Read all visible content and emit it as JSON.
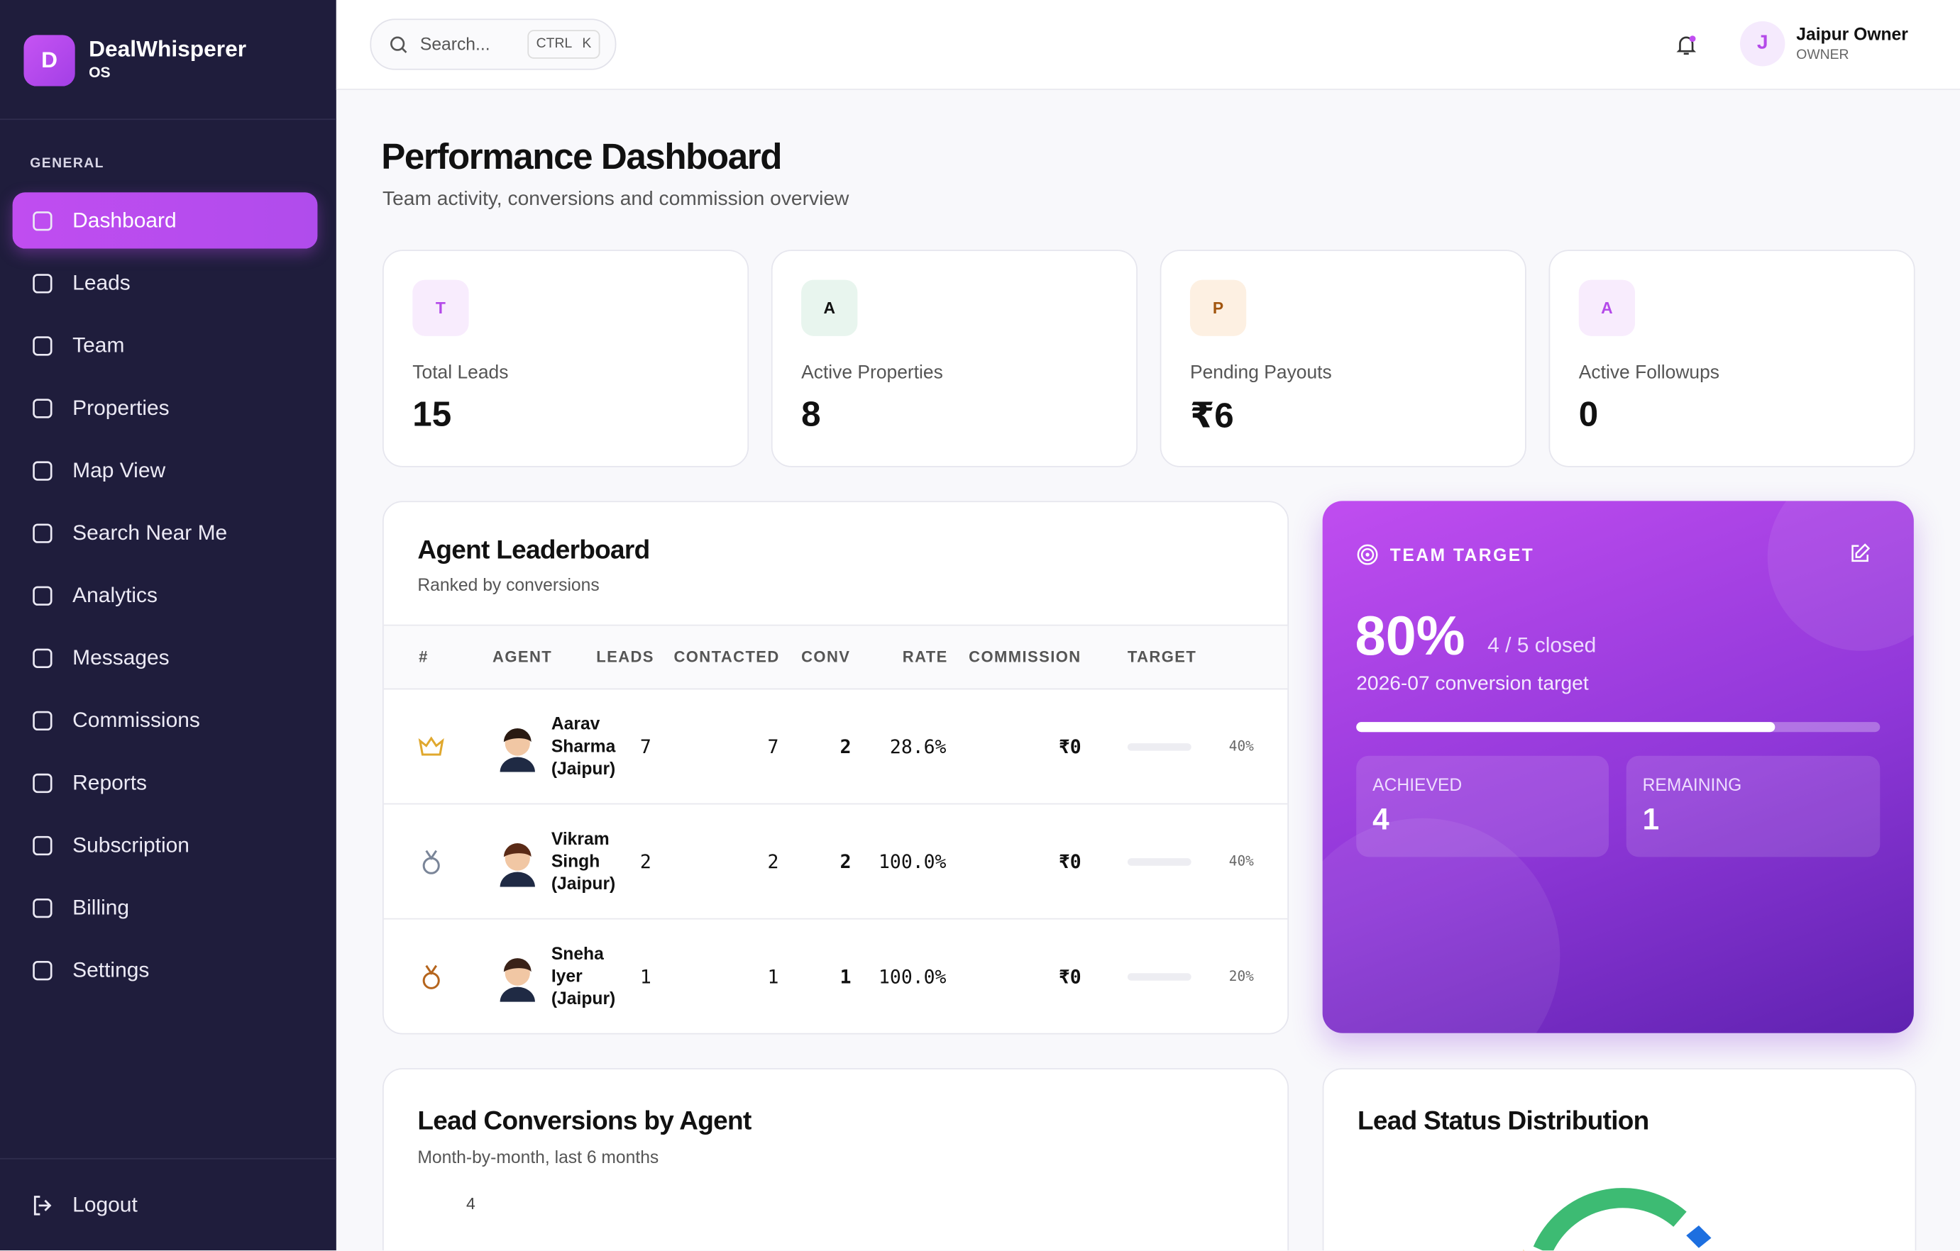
{
  "sidebar": {
    "logo_letter": "D",
    "brand": "DealWhisperer",
    "brand_sub": "OS",
    "section": "GENERAL",
    "nav": [
      "Dashboard",
      "Leads",
      "Team",
      "Properties",
      "Map View",
      "Search Near Me",
      "Analytics",
      "Messages",
      "Commissions",
      "Reports",
      "Subscription",
      "Billing",
      "Settings"
    ],
    "logout": "Logout"
  },
  "topbar": {
    "search_placeholder": "Search...",
    "shortcut_keys": [
      "CTRL",
      "K"
    ],
    "user_initial": "J",
    "user_name": "Jaipur Owner",
    "user_role": "OWNER"
  },
  "header": {
    "title": "Performance Dashboard",
    "subtitle": "Team activity, conversions and commission overview"
  },
  "stats": [
    {
      "badge": "T",
      "label": "Total Leads",
      "value": "15"
    },
    {
      "badge": "A",
      "label": "Active Properties",
      "value": "8"
    },
    {
      "badge": "P",
      "label": "Pending Payouts",
      "value": "₹6"
    },
    {
      "badge": "A",
      "label": "Active Followups",
      "value": "0"
    }
  ],
  "leaderboard": {
    "title": "Agent Leaderboard",
    "subtitle": "Ranked by conversions",
    "columns": [
      "#",
      "AGENT",
      "LEADS",
      "CONTACTED",
      "CONV",
      "RATE",
      "COMMISSION",
      "TARGET"
    ],
    "rows": [
      {
        "agent": "Aarav Sharma (Jaipur)",
        "leads": "7",
        "contacted": "7",
        "conv": "2",
        "rate": "28.6%",
        "commission": "₹0",
        "target": "40%"
      },
      {
        "agent": "Vikram Singh (Jaipur)",
        "leads": "2",
        "contacted": "2",
        "conv": "2",
        "rate": "100.0%",
        "commission": "₹0",
        "target": "40%"
      },
      {
        "agent": "Sneha Iyer (Jaipur)",
        "leads": "1",
        "contacted": "1",
        "conv": "1",
        "rate": "100.0%",
        "commission": "₹0",
        "target": "20%"
      }
    ]
  },
  "team_target": {
    "label": "TEAM TARGET",
    "percent": "80%",
    "closed": "4 / 5 closed",
    "caption": "2026-07 conversion target",
    "achieved_label": "ACHIEVED",
    "achieved": "4",
    "remaining_label": "REMAINING",
    "remaining": "1"
  },
  "conversions_chart": {
    "title": "Lead Conversions by Agent",
    "subtitle": "Month-by-month, last 6 months",
    "ytick": "4"
  },
  "status_chart": {
    "title": "Lead Status Distribution"
  }
}
